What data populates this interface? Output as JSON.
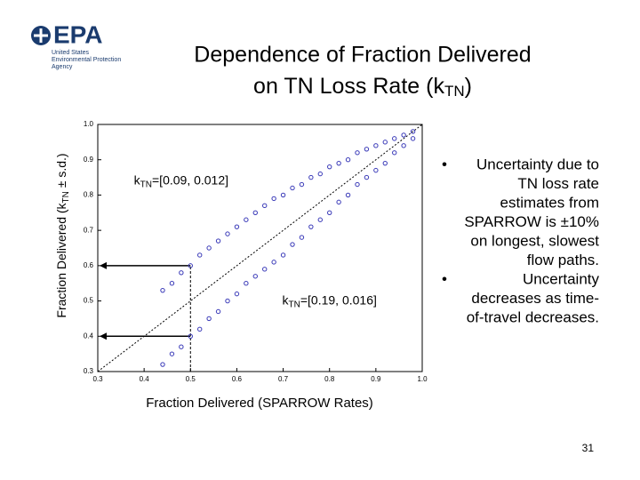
{
  "logo": {
    "mark": "EPA",
    "lines": [
      "United States",
      "Environmental Protection",
      "Agency"
    ]
  },
  "chart_data": {
    "type": "scatter",
    "title_parts": [
      "Dependence of Fraction Delivered",
      "on TN Loss Rate (k",
      "TN",
      ")"
    ],
    "y_label_parts": [
      "Fraction Delivered (k",
      "TN",
      " ± s.d.)"
    ],
    "x_label": "Fraction Delivered (SPARROW Rates)",
    "annotations": [
      {
        "parts": [
          "k",
          "TN",
          "=[0.09, 0.012]"
        ],
        "x": 0.48,
        "y": 0.84
      },
      {
        "parts": [
          "k",
          "TN",
          "=[0.19, 0.016]"
        ],
        "x": 0.8,
        "y": 0.5
      }
    ],
    "xlim": [
      0.3,
      1
    ],
    "ylim": [
      0.3,
      1
    ],
    "xticks": [
      0.3,
      0.4,
      0.5,
      0.6,
      0.7,
      0.8,
      0.9,
      {
        "value": 1,
        "label": "1.0"
      }
    ],
    "yticks": [
      0.3,
      0.4,
      0.5,
      0.6,
      0.7,
      0.8,
      0.9,
      {
        "value": 1,
        "label": "1.0"
      }
    ],
    "identity_line": true,
    "reference": {
      "x": 0.5,
      "y": [
        0.6,
        0.4
      ]
    },
    "series": [
      {
        "color": "#3a3ab8",
        "x": [
          0.44,
          0.46,
          0.48,
          0.5,
          0.52,
          0.54,
          0.56,
          0.58,
          0.6,
          0.62,
          0.64,
          0.66,
          0.68,
          0.7,
          0.72,
          0.74,
          0.76,
          0.78,
          0.8,
          0.82,
          0.84,
          0.86,
          0.88,
          0.9,
          0.92,
          0.94,
          0.96,
          0.98
        ],
        "values": [
          0.53,
          0.55,
          0.58,
          0.6,
          0.63,
          0.65,
          0.67,
          0.69,
          0.71,
          0.73,
          0.75,
          0.77,
          0.79,
          0.8,
          0.82,
          0.83,
          0.85,
          0.86,
          0.88,
          0.89,
          0.9,
          0.92,
          0.93,
          0.94,
          0.95,
          0.96,
          0.97,
          0.98
        ]
      },
      {
        "color": "#3a3ab8",
        "x": [
          0.44,
          0.46,
          0.48,
          0.5,
          0.52,
          0.54,
          0.56,
          0.58,
          0.6,
          0.62,
          0.64,
          0.66,
          0.68,
          0.7,
          0.72,
          0.74,
          0.76,
          0.78,
          0.8,
          0.82,
          0.84,
          0.86,
          0.88,
          0.9,
          0.92,
          0.94,
          0.96,
          0.98
        ],
        "values": [
          0.32,
          0.35,
          0.37,
          0.4,
          0.42,
          0.45,
          0.47,
          0.5,
          0.52,
          0.55,
          0.57,
          0.59,
          0.61,
          0.63,
          0.66,
          0.68,
          0.71,
          0.73,
          0.75,
          0.78,
          0.8,
          0.83,
          0.85,
          0.87,
          0.89,
          0.92,
          0.94,
          0.96
        ]
      }
    ]
  },
  "bullets": [
    [
      "Uncertainty due to",
      "TN loss rate",
      "estimates from",
      "SPARROW is ±10%",
      "on longest, slowest",
      "flow paths."
    ],
    [
      "Uncertainty",
      "decreases as time-",
      "of-travel decreases."
    ]
  ],
  "page_number": "31"
}
